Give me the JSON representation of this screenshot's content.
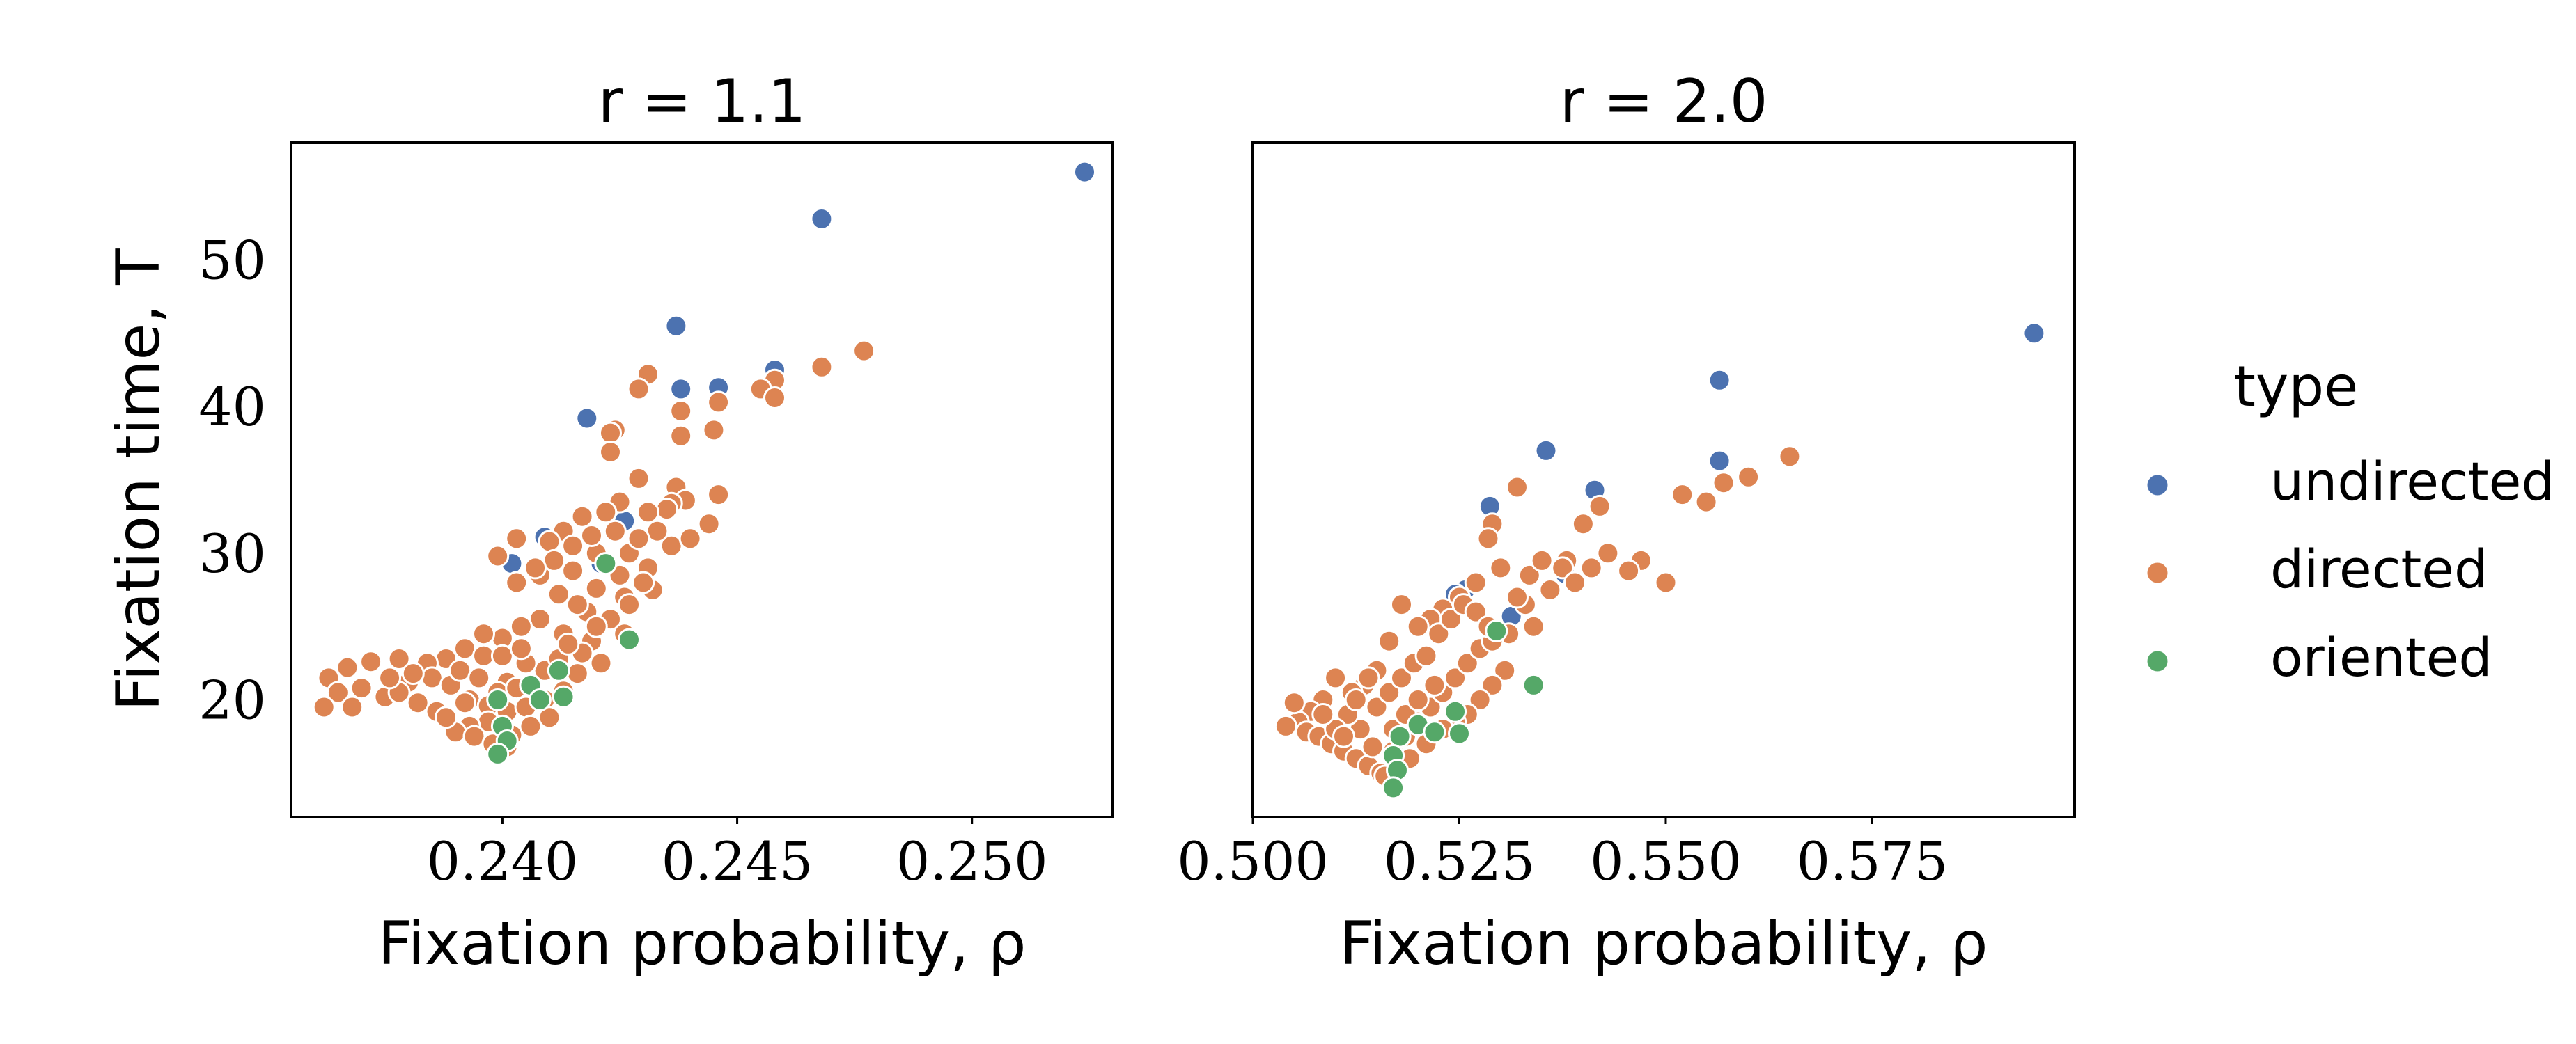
{
  "colors": {
    "undirected": "#4c72b0",
    "directed": "#dd8452",
    "oriented": "#55a868"
  },
  "legend": {
    "title": "type",
    "placement": "right",
    "items": [
      {
        "label": "undirected",
        "color": "#4c72b0"
      },
      {
        "label": "directed",
        "color": "#dd8452"
      },
      {
        "label": "oriented",
        "color": "#55a868"
      }
    ]
  },
  "chart_data": [
    {
      "type": "scatter",
      "title": "r = 1.1",
      "xlabel": "Fixation probability, ρ",
      "ylabel": "Fixation time, T",
      "xlim": [
        0.2355,
        0.253
      ],
      "ylim": [
        12,
        58
      ],
      "xticks": [
        "0.240",
        "0.245",
        "0.250"
      ],
      "xtick_values": [
        0.24,
        0.245,
        0.25
      ],
      "yticks": [
        "20",
        "30",
        "40",
        "50"
      ],
      "ytick_values": [
        20,
        30,
        40,
        50
      ],
      "grid": false,
      "series": [
        {
          "name": "undirected",
          "color": "#4c72b0",
          "points": [
            [
              0.2524,
              56.0
            ],
            [
              0.2468,
              52.8
            ],
            [
              0.2437,
              45.5
            ],
            [
              0.2438,
              41.2
            ],
            [
              0.2458,
              42.5
            ],
            [
              0.2418,
              39.2
            ],
            [
              0.2446,
              41.3
            ],
            [
              0.2409,
              31.1
            ],
            [
              0.2426,
              32.2
            ],
            [
              0.2402,
              29.3
            ],
            [
              0.2421,
              29.3
            ],
            [
              0.2422,
              29.4
            ]
          ]
        },
        {
          "name": "directed",
          "color": "#dd8452",
          "points": [
            [
              0.2477,
              43.8
            ],
            [
              0.2468,
              42.7
            ],
            [
              0.2458,
              41.8
            ],
            [
              0.2455,
              41.2
            ],
            [
              0.2458,
              40.6
            ],
            [
              0.2446,
              40.3
            ],
            [
              0.2438,
              39.7
            ],
            [
              0.2445,
              38.4
            ],
            [
              0.2438,
              38.0
            ],
            [
              0.2431,
              42.2
            ],
            [
              0.2429,
              41.2
            ],
            [
              0.2424,
              38.4
            ],
            [
              0.2423,
              38.2
            ],
            [
              0.2423,
              36.9
            ],
            [
              0.2429,
              35.1
            ],
            [
              0.2437,
              34.5
            ],
            [
              0.2439,
              33.6
            ],
            [
              0.2436,
              33.4
            ],
            [
              0.2435,
              33.0
            ],
            [
              0.2431,
              32.8
            ],
            [
              0.2425,
              33.5
            ],
            [
              0.2422,
              32.8
            ],
            [
              0.2417,
              32.5
            ],
            [
              0.2413,
              31.5
            ],
            [
              0.2403,
              31.0
            ],
            [
              0.241,
              30.8
            ],
            [
              0.2415,
              30.5
            ],
            [
              0.242,
              30.0
            ],
            [
              0.2427,
              30.0
            ],
            [
              0.2431,
              29.0
            ],
            [
              0.2415,
              28.8
            ],
            [
              0.2408,
              28.5
            ],
            [
              0.2403,
              28.0
            ],
            [
              0.2399,
              29.8
            ],
            [
              0.2412,
              27.2
            ],
            [
              0.242,
              27.6
            ],
            [
              0.2426,
              27.0
            ],
            [
              0.2418,
              26.0
            ],
            [
              0.2423,
              25.5
            ],
            [
              0.2426,
              24.5
            ],
            [
              0.2419,
              24.0
            ],
            [
              0.2413,
              24.5
            ],
            [
              0.2408,
              25.5
            ],
            [
              0.2404,
              25.0
            ],
            [
              0.24,
              24.2
            ],
            [
              0.2396,
              24.5
            ],
            [
              0.2392,
              23.5
            ],
            [
              0.2388,
              22.8
            ],
            [
              0.2384,
              22.5
            ],
            [
              0.2378,
              22.8
            ],
            [
              0.2372,
              22.6
            ],
            [
              0.2367,
              22.2
            ],
            [
              0.2363,
              21.5
            ],
            [
              0.2365,
              20.5
            ],
            [
              0.237,
              20.8
            ],
            [
              0.2375,
              20.2
            ],
            [
              0.2368,
              19.5
            ],
            [
              0.2362,
              19.5
            ],
            [
              0.238,
              21.2
            ],
            [
              0.2385,
              21.5
            ],
            [
              0.2389,
              21.0
            ],
            [
              0.2393,
              20.0
            ],
            [
              0.2397,
              19.6
            ],
            [
              0.2401,
              19.2
            ],
            [
              0.2405,
              19.5
            ],
            [
              0.2409,
              20.0
            ],
            [
              0.2413,
              20.6
            ],
            [
              0.2416,
              21.8
            ],
            [
              0.2409,
              22.0
            ],
            [
              0.2405,
              22.5
            ],
            [
              0.2401,
              21.2
            ],
            [
              0.2397,
              18.5
            ],
            [
              0.2393,
              18.2
            ],
            [
              0.239,
              17.8
            ],
            [
              0.2394,
              17.5
            ],
            [
              0.2398,
              17.0
            ],
            [
              0.2402,
              17.6
            ],
            [
              0.2406,
              18.2
            ],
            [
              0.241,
              18.8
            ],
            [
              0.2386,
              19.2
            ],
            [
              0.2382,
              19.8
            ],
            [
              0.2378,
              20.5
            ],
            [
              0.2391,
              22.0
            ],
            [
              0.2396,
              23.0
            ],
            [
              0.24,
              23.0
            ],
            [
              0.2404,
              23.5
            ],
            [
              0.2417,
              23.2
            ],
            [
              0.2421,
              22.5
            ],
            [
              0.2427,
              26.5
            ],
            [
              0.2432,
              27.5
            ],
            [
              0.2436,
              30.5
            ],
            [
              0.244,
              31.0
            ],
            [
              0.2444,
              32.0
            ],
            [
              0.2446,
              34.0
            ],
            [
              0.2433,
              31.5
            ],
            [
              0.2429,
              31.0
            ],
            [
              0.2425,
              28.5
            ],
            [
              0.2411,
              29.5
            ],
            [
              0.2407,
              29.0
            ],
            [
              0.2416,
              26.5
            ],
            [
              0.2388,
              18.8
            ],
            [
              0.2392,
              19.8
            ],
            [
              0.2399,
              20.5
            ],
            [
              0.2403,
              20.8
            ],
            [
              0.2381,
              21.8
            ],
            [
              0.2376,
              21.5
            ],
            [
              0.2395,
              21.5
            ],
            [
              0.2406,
              21.0
            ],
            [
              0.2412,
              22.8
            ],
            [
              0.2414,
              23.8
            ],
            [
              0.242,
              25.0
            ],
            [
              0.243,
              28.0
            ],
            [
              0.2424,
              31.5
            ],
            [
              0.2419,
              31.2
            ],
            [
              0.2401,
              16.8
            ]
          ]
        },
        {
          "name": "oriented",
          "color": "#55a868",
          "points": [
            [
              0.2422,
              29.3
            ],
            [
              0.2427,
              24.1
            ],
            [
              0.2412,
              22.0
            ],
            [
              0.2406,
              21.0
            ],
            [
              0.2413,
              20.2
            ],
            [
              0.2408,
              20.0
            ],
            [
              0.2399,
              20.0
            ],
            [
              0.24,
              18.2
            ],
            [
              0.2401,
              17.2
            ],
            [
              0.2399,
              16.3
            ]
          ]
        }
      ]
    },
    {
      "type": "scatter",
      "title": "r = 2.0",
      "xlabel": "Fixation probability, ρ",
      "ylabel": "",
      "xlim": [
        0.5,
        0.5995
      ],
      "ylim": [
        12,
        58
      ],
      "xticks": [
        "0.500",
        "0.525",
        "0.550",
        "0.575"
      ],
      "xtick_values": [
        0.5,
        0.525,
        0.55,
        0.575
      ],
      "yticks": [],
      "ytick_values": [],
      "grid": false,
      "series": [
        {
          "name": "undirected",
          "color": "#4c72b0",
          "points": [
            [
              0.5946,
              45.0
            ],
            [
              0.5565,
              41.8
            ],
            [
              0.5565,
              36.3
            ],
            [
              0.5355,
              37.0
            ],
            [
              0.5414,
              34.3
            ],
            [
              0.5287,
              33.2
            ],
            [
              0.5257,
              27.5
            ],
            [
              0.5245,
              27.2
            ],
            [
              0.5313,
              25.7
            ],
            [
              0.5378,
              28.6
            ]
          ]
        },
        {
          "name": "directed",
          "color": "#dd8452",
          "points": [
            [
              0.565,
              36.6
            ],
            [
              0.56,
              35.2
            ],
            [
              0.557,
              34.8
            ],
            [
              0.552,
              34.0
            ],
            [
              0.5549,
              33.5
            ],
            [
              0.547,
              29.5
            ],
            [
              0.542,
              33.2
            ],
            [
              0.54,
              32.0
            ],
            [
              0.538,
              29.5
            ],
            [
              0.543,
              30.0
            ],
            [
              0.541,
              29.0
            ],
            [
              0.536,
              27.5
            ],
            [
              0.533,
              26.5
            ],
            [
              0.534,
              25.0
            ],
            [
              0.531,
              24.5
            ],
            [
              0.529,
              32.0
            ],
            [
              0.5285,
              31.0
            ],
            [
              0.532,
              34.5
            ],
            [
              0.5375,
              29.0
            ],
            [
              0.539,
              28.0
            ],
            [
              0.53,
              29.0
            ],
            [
              0.527,
              28.0
            ],
            [
              0.525,
              27.0
            ],
            [
              0.523,
              26.2
            ],
            [
              0.5215,
              25.5
            ],
            [
              0.52,
              25.0
            ],
            [
              0.518,
              26.5
            ],
            [
              0.5165,
              24.0
            ],
            [
              0.515,
              22.0
            ],
            [
              0.5135,
              21.0
            ],
            [
              0.512,
              20.5
            ],
            [
              0.51,
              21.5
            ],
            [
              0.5085,
              20.0
            ],
            [
              0.507,
              19.2
            ],
            [
              0.5055,
              18.5
            ],
            [
              0.504,
              18.2
            ],
            [
              0.505,
              19.8
            ],
            [
              0.5065,
              17.8
            ],
            [
              0.508,
              17.5
            ],
            [
              0.5095,
              17.0
            ],
            [
              0.511,
              16.5
            ],
            [
              0.5125,
              16.0
            ],
            [
              0.514,
              15.5
            ],
            [
              0.5155,
              15.0
            ],
            [
              0.517,
              16.5
            ],
            [
              0.5185,
              17.5
            ],
            [
              0.52,
              18.5
            ],
            [
              0.5215,
              19.5
            ],
            [
              0.523,
              20.5
            ],
            [
              0.5245,
              21.5
            ],
            [
              0.526,
              22.5
            ],
            [
              0.5275,
              23.5
            ],
            [
              0.529,
              24.0
            ],
            [
              0.5305,
              22.0
            ],
            [
              0.529,
              21.0
            ],
            [
              0.5275,
              20.0
            ],
            [
              0.526,
              19.0
            ],
            [
              0.5245,
              18.5
            ],
            [
              0.523,
              18.0
            ],
            [
              0.521,
              17.0
            ],
            [
              0.519,
              16.0
            ],
            [
              0.5175,
              15.2
            ],
            [
              0.516,
              14.8
            ],
            [
              0.5145,
              16.8
            ],
            [
              0.513,
              18.0
            ],
            [
              0.5115,
              19.0
            ],
            [
              0.51,
              18.0
            ],
            [
              0.5085,
              19.0
            ],
            [
              0.515,
              19.5
            ],
            [
              0.5165,
              20.5
            ],
            [
              0.518,
              21.5
            ],
            [
              0.5195,
              22.5
            ],
            [
              0.521,
              23.0
            ],
            [
              0.5225,
              24.5
            ],
            [
              0.524,
              25.5
            ],
            [
              0.5255,
              26.5
            ],
            [
              0.527,
              26.0
            ],
            [
              0.5285,
              25.0
            ],
            [
              0.532,
              27.0
            ],
            [
              0.5335,
              28.5
            ],
            [
              0.535,
              29.5
            ],
            [
              0.5455,
              28.8
            ],
            [
              0.55,
              28.0
            ],
            [
              0.514,
              21.5
            ],
            [
              0.5125,
              20.0
            ],
            [
              0.511,
              17.5
            ],
            [
              0.517,
              18.0
            ],
            [
              0.5185,
              19.0
            ],
            [
              0.52,
              20.0
            ],
            [
              0.522,
              21.0
            ]
          ]
        },
        {
          "name": "oriented",
          "color": "#55a868",
          "points": [
            [
              0.5295,
              24.7
            ],
            [
              0.534,
              21.0
            ],
            [
              0.5245,
              19.2
            ],
            [
              0.52,
              18.3
            ],
            [
              0.522,
              17.8
            ],
            [
              0.525,
              17.7
            ],
            [
              0.5178,
              17.5
            ],
            [
              0.517,
              16.2
            ],
            [
              0.5175,
              15.2
            ],
            [
              0.517,
              14.0
            ]
          ]
        }
      ]
    }
  ]
}
